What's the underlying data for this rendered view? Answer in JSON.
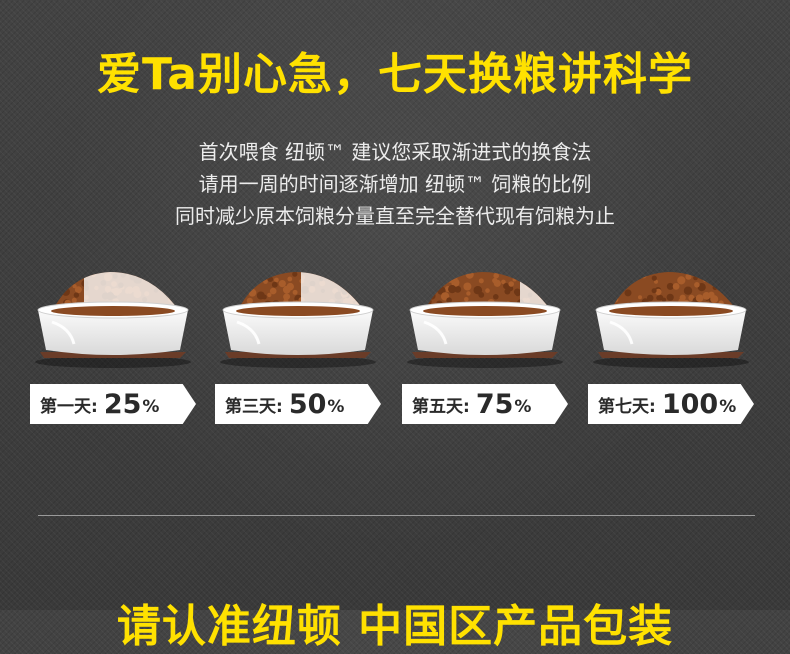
{
  "header": {
    "title": "爱Ta别心急，七天换粮讲科学"
  },
  "intro": {
    "lines": [
      "首次喂食 纽顿™ 建议您采取渐进式的换食法",
      "请用一周的时间逐渐增加 纽顿™ 饲粮的比例",
      "同时减少原本饲粮分量直至完全替代现有饲粮为止"
    ]
  },
  "stages": [
    {
      "day": "第一天:",
      "value": "25",
      "unit": "%",
      "new_food_fraction": 0.25
    },
    {
      "day": "第三天:",
      "value": "50",
      "unit": "%",
      "new_food_fraction": 0.5
    },
    {
      "day": "第五天:",
      "value": "75",
      "unit": "%",
      "new_food_fraction": 0.75
    },
    {
      "day": "第七天:",
      "value": "100",
      "unit": "%",
      "new_food_fraction": 1.0
    }
  ],
  "footer": {
    "title": "请认准纽顿 中国区产品包装"
  },
  "colors": {
    "accent": "#ffe100",
    "kibble": "#8a4a22",
    "bowl": "#f2f2f2",
    "bowl_base": "#6a3c28"
  }
}
